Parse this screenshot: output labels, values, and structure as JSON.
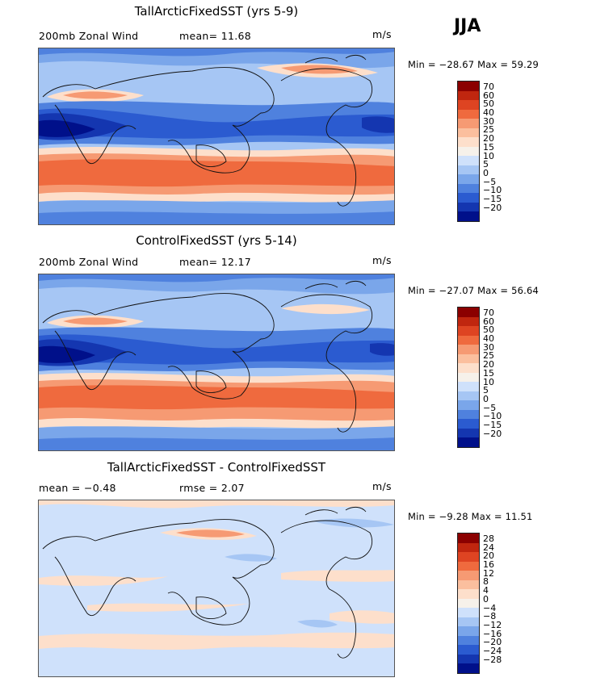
{
  "season": "JJA",
  "units": "m/s",
  "panels": [
    {
      "title": "TallArcticFixedSST (yrs 5-9)",
      "field_label": "200mb Zonal Wind",
      "stat_text": "mean=  11.68",
      "minmax": "Min = −28.67 Max =  59.29",
      "legend": [
        "70",
        "60",
        "50",
        "40",
        "30",
        "25",
        "20",
        "15",
        "10",
        "5",
        "0",
        "−5",
        "−10",
        "−15",
        "−20"
      ]
    },
    {
      "title": "ControlFixedSST (yrs 5-14)",
      "field_label": "200mb Zonal Wind",
      "stat_text": "mean=  12.17",
      "minmax": "Min = −27.07 Max =  56.64",
      "legend": [
        "70",
        "60",
        "50",
        "40",
        "30",
        "25",
        "20",
        "15",
        "10",
        "5",
        "0",
        "−5",
        "−10",
        "−15",
        "−20"
      ]
    },
    {
      "title": "TallArcticFixedSST - ControlFixedSST",
      "field_label": "mean =  −0.48",
      "stat_text": "rmse =   2.07",
      "minmax": "Min =  −9.28 Max =  11.51",
      "legend": [
        "28",
        "24",
        "20",
        "16",
        "12",
        "8",
        "4",
        "0",
        "−4",
        "−8",
        "−12",
        "−16",
        "−20",
        "−24",
        "−28"
      ]
    }
  ],
  "palette": [
    "#8b0000",
    "#c0260f",
    "#de4422",
    "#ef6a3e",
    "#f69a73",
    "#fbbf9e",
    "#fddfcb",
    "#f6f1ea",
    "#cfe1fb",
    "#a6c6f4",
    "#7aa6ea",
    "#4f81de",
    "#2b5bd0",
    "#1436b0",
    "#00108a"
  ]
}
